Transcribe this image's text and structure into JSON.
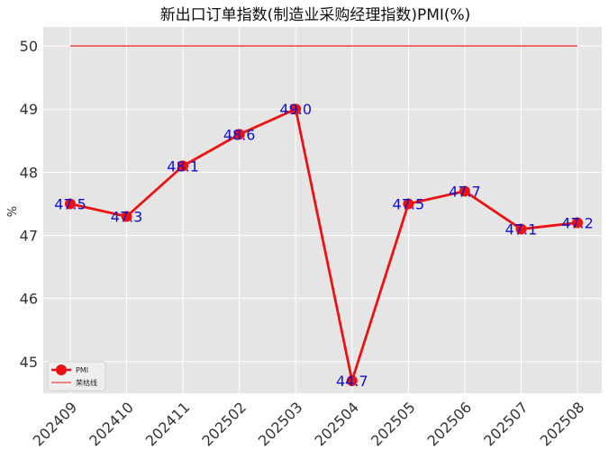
{
  "chart_data": {
    "type": "line",
    "title": "新出口订单指数(制造业采购经理指数)PMI(%)",
    "xlabel": "",
    "ylabel": "%",
    "categories": [
      "202409",
      "202410",
      "202411",
      "202502",
      "202503",
      "202504",
      "202505",
      "202506",
      "202507",
      "202508"
    ],
    "series": [
      {
        "name": "PMI",
        "values": [
          47.5,
          47.3,
          48.1,
          48.6,
          49.0,
          44.7,
          47.5,
          47.7,
          47.1,
          47.2
        ],
        "color": "#ee1111",
        "marker": "circle"
      },
      {
        "name": "荣枯线",
        "values": [
          50,
          50,
          50,
          50,
          50,
          50,
          50,
          50,
          50,
          50
        ],
        "color": "#ee1111",
        "marker": "none"
      }
    ],
    "data_labels": [
      "47.5",
      "47.3",
      "48.1",
      "48.6",
      "49.0",
      "44.7",
      "47.5",
      "47.7",
      "47.1",
      "47.2"
    ],
    "yticks": [
      "45",
      "46",
      "47",
      "48",
      "49",
      "50"
    ],
    "ylim": [
      44.5,
      50.3
    ],
    "grid": true,
    "legend_position": "lower-left",
    "colors": {
      "plot_background": "#e5e5e5",
      "grid": "#ffffff",
      "data_label": "#1010d0"
    }
  }
}
